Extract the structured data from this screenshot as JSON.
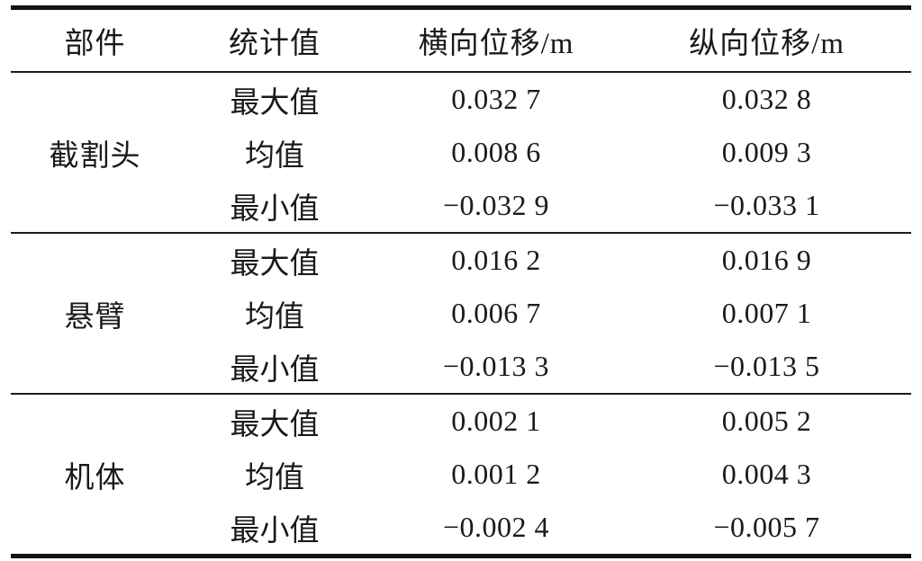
{
  "table": {
    "title_semantic": "displacement-statistics-table",
    "headers": {
      "component": "部件",
      "stat": "统计值",
      "lateral": "横向位移/m",
      "longitudinal": "纵向位移/m"
    },
    "groups": [
      {
        "component": "截割头",
        "rows": [
          {
            "stat": "最大值",
            "lateral": "0.032 7",
            "longitudinal": "0.032 8"
          },
          {
            "stat": "均值",
            "lateral": "0.008 6",
            "longitudinal": "0.009 3"
          },
          {
            "stat": "最小值",
            "lateral": "−0.032 9",
            "longitudinal": "−0.033 1"
          }
        ]
      },
      {
        "component": "悬臂",
        "rows": [
          {
            "stat": "最大值",
            "lateral": "0.016 2",
            "longitudinal": "0.016 9"
          },
          {
            "stat": "均值",
            "lateral": "0.006 7",
            "longitudinal": "0.007 1"
          },
          {
            "stat": "最小值",
            "lateral": "−0.013 3",
            "longitudinal": "−0.013 5"
          }
        ]
      },
      {
        "component": "机体",
        "rows": [
          {
            "stat": "最大值",
            "lateral": "0.002 1",
            "longitudinal": "0.005 2"
          },
          {
            "stat": "均值",
            "lateral": "0.001 2",
            "longitudinal": "0.004 3"
          },
          {
            "stat": "最小值",
            "lateral": "−0.002 4",
            "longitudinal": "−0.005 7"
          }
        ]
      }
    ],
    "colors": {
      "rule": "#121212",
      "text": "#1a1a1a",
      "background": "#ffffff"
    }
  }
}
